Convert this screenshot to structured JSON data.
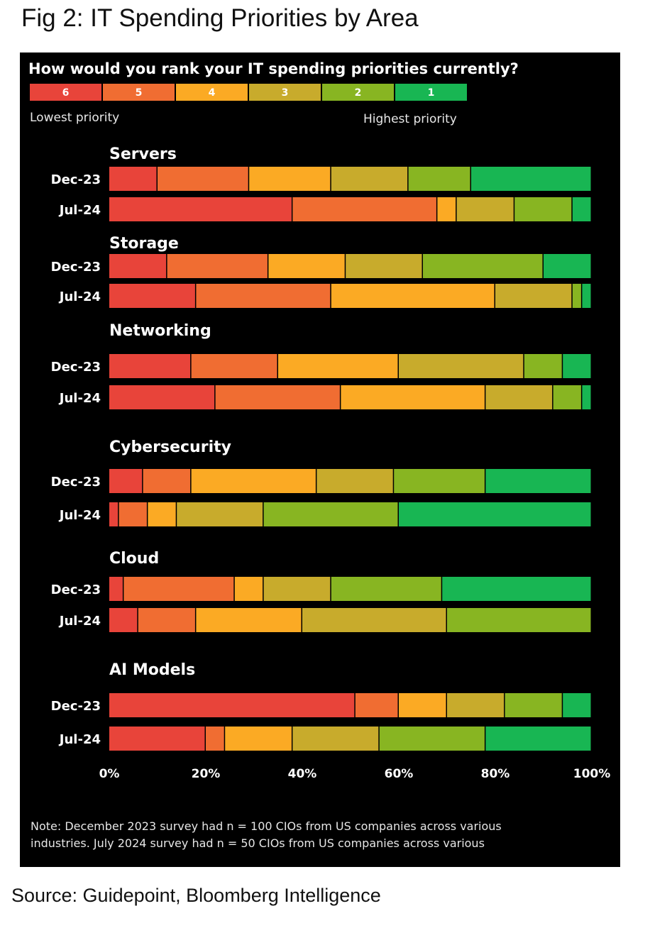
{
  "figure": {
    "title": "Fig 2: IT Spending Priorities by Area",
    "source": "Source: Guidepoint, Bloomberg Intelligence"
  },
  "chart_data": {
    "type": "bar",
    "stacked": true,
    "orientation": "horizontal",
    "title": "How would you rank your IT spending priorities currently?",
    "legend_placement": "top",
    "legend_lowest_label": "Lowest priority",
    "legend_highest_label": "Highest priority",
    "xlim": [
      0,
      100
    ],
    "x_ticks": [
      "0%",
      "20%",
      "40%",
      "60%",
      "80%",
      "100%"
    ],
    "note_lines": [
      "Note: December 2023 survey had n = 100 CIOs from US companies across various",
      "industries. July 2024 survey had n = 50 CIOs from US companies across various"
    ],
    "series": [
      {
        "name": "6",
        "color": "#e8443a"
      },
      {
        "name": "5",
        "color": "#f06d32"
      },
      {
        "name": "4",
        "color": "#fbaa24"
      },
      {
        "name": "3",
        "color": "#c8ab2c"
      },
      {
        "name": "2",
        "color": "#88b522"
      },
      {
        "name": "1",
        "color": "#18b653"
      }
    ],
    "groups": [
      {
        "name": "Servers",
        "rows": [
          {
            "label": "Dec-23",
            "values": [
              10,
              19,
              17,
              16,
              13,
              25
            ]
          },
          {
            "label": "Jul-24",
            "values": [
              38,
              30,
              4,
              12,
              12,
              4
            ]
          }
        ]
      },
      {
        "name": "Storage",
        "rows": [
          {
            "label": "Dec-23",
            "values": [
              12,
              21,
              16,
              16,
              25,
              10
            ]
          },
          {
            "label": "Jul-24",
            "values": [
              18,
              28,
              34,
              16,
              2,
              2
            ]
          }
        ]
      },
      {
        "name": "Networking",
        "rows": [
          {
            "label": "Dec-23",
            "values": [
              17,
              18,
              25,
              26,
              8,
              6
            ]
          },
          {
            "label": "Jul-24",
            "values": [
              22,
              26,
              30,
              14,
              6,
              2
            ]
          }
        ]
      },
      {
        "name": "Cybersecurity",
        "rows": [
          {
            "label": "Dec-23",
            "values": [
              7,
              10,
              26,
              16,
              19,
              22
            ]
          },
          {
            "label": "Jul-24",
            "values": [
              2,
              6,
              6,
              18,
              28,
              40
            ]
          }
        ]
      },
      {
        "name": "Cloud",
        "rows": [
          {
            "label": "Dec-23",
            "values": [
              3,
              23,
              6,
              14,
              23,
              31
            ]
          },
          {
            "label": "Jul-24",
            "values": [
              6,
              12,
              22,
              30,
              30,
              0
            ]
          }
        ]
      },
      {
        "name": "AI Models",
        "rows": [
          {
            "label": "Dec-23",
            "values": [
              51,
              9,
              10,
              12,
              12,
              6
            ]
          },
          {
            "label": "Jul-24",
            "values": [
              20,
              4,
              14,
              18,
              22,
              22
            ]
          }
        ]
      }
    ]
  }
}
